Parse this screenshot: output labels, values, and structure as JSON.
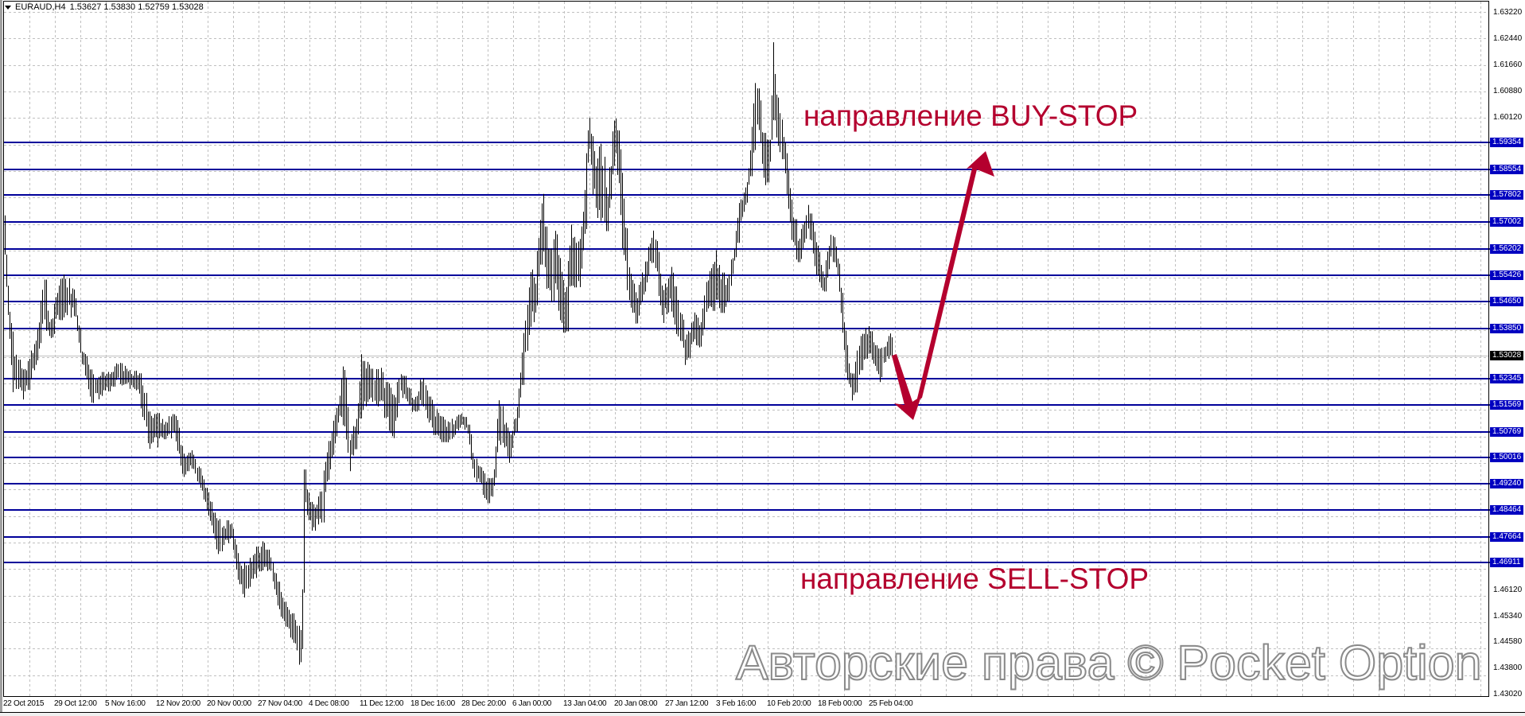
{
  "header": {
    "symbol": "EURAUD,H4",
    "ohlc": "1.53627 1.53830 1.52759 1.53028",
    "menu_icon": "triangle-down-icon"
  },
  "annotations": {
    "buy_text": "направление BUY-STOP",
    "sell_text": "направление SELL-STOP",
    "watermark": "Авторские права © Pocket Option",
    "color": "#b4002e"
  },
  "colors": {
    "bars": "#000000",
    "levels": "#00009a",
    "level_label_bg": "#0000c0",
    "current_price_bg": "#000000",
    "grid": "#c0c0c0",
    "current_price_line": "#c0c0c0"
  },
  "chart_data": {
    "type": "ohlc",
    "symbol": "EURAUD",
    "timeframe": "H4",
    "ylim": [
      1.4295,
      1.6353
    ],
    "grid": true,
    "last_close": 1.53028,
    "y_ticks": [
      "1.63220",
      "1.62440",
      "1.61660",
      "1.60880",
      "1.60120",
      "1.46120",
      "1.45340",
      "1.44580",
      "1.43800",
      "1.43020"
    ],
    "x_ticks": [
      {
        "label": "22 Oct 2015",
        "t": "2015-10-22T00:00"
      },
      {
        "label": "29 Oct 12:00",
        "t": "2015-10-29T12:00"
      },
      {
        "label": "5 Nov 16:00",
        "t": "2015-11-05T16:00"
      },
      {
        "label": "12 Nov 20:00",
        "t": "2015-11-12T20:00"
      },
      {
        "label": "20 Nov 00:00",
        "t": "2015-11-20T00:00"
      },
      {
        "label": "27 Nov 04:00",
        "t": "2015-11-27T04:00"
      },
      {
        "label": "4 Dec 08:00",
        "t": "2015-12-04T08:00"
      },
      {
        "label": "11 Dec 12:00",
        "t": "2015-12-11T12:00"
      },
      {
        "label": "18 Dec 16:00",
        "t": "2015-12-18T16:00"
      },
      {
        "label": "28 Dec 20:00",
        "t": "2015-12-28T20:00"
      },
      {
        "label": "6 Jan 00:00",
        "t": "2016-01-06T00:00"
      },
      {
        "label": "13 Jan 04:00",
        "t": "2016-01-13T04:00"
      },
      {
        "label": "20 Jan 08:00",
        "t": "2016-01-20T08:00"
      },
      {
        "label": "27 Jan 12:00",
        "t": "2016-01-27T12:00"
      },
      {
        "label": "3 Feb 16:00",
        "t": "2016-02-03T16:00"
      },
      {
        "label": "10 Feb 20:00",
        "t": "2016-02-10T20:00"
      },
      {
        "label": "18 Feb 00:00",
        "t": "2016-02-18T00:00"
      },
      {
        "label": "25 Feb 04:00",
        "t": "2016-02-25T04:00"
      }
    ],
    "levels": [
      "1.59354",
      "1.58554",
      "1.57802",
      "1.57002",
      "1.56202",
      "1.55426",
      "1.54650",
      "1.53850",
      "1.52345",
      "1.51569",
      "1.50769",
      "1.50016",
      "1.49240",
      "1.48464",
      "1.47664",
      "1.46911"
    ],
    "price_envelope": [
      [
        "2015-10-22T00:00",
        1.5768,
        1.5662
      ],
      [
        "2015-10-22T12:00",
        1.5561,
        1.5412
      ],
      [
        "2015-10-23T08:00",
        1.5334,
        1.5191
      ],
      [
        "2015-10-24T20:00",
        1.5266,
        1.5162
      ],
      [
        "2015-10-26T16:00",
        1.5353,
        1.5257
      ],
      [
        "2015-10-27T20:00",
        1.5556,
        1.5372
      ],
      [
        "2015-10-28T16:00",
        1.5403,
        1.5344
      ],
      [
        "2015-10-30T16:00",
        1.5575,
        1.5422
      ],
      [
        "2015-11-01T08:00",
        1.5488,
        1.5412
      ],
      [
        "2015-11-02T08:00",
        1.5325,
        1.5275
      ],
      [
        "2015-11-03T16:00",
        1.5266,
        1.5151
      ],
      [
        "2015-11-05T16:00",
        1.5257,
        1.5191
      ],
      [
        "2015-11-07T12:00",
        1.5287,
        1.5219
      ],
      [
        "2015-11-10T08:00",
        1.5257,
        1.5191
      ],
      [
        "2015-11-11T16:00",
        1.5162,
        1.4997
      ],
      [
        "2015-11-13T16:00",
        1.5122,
        1.5047
      ],
      [
        "2015-11-15T08:00",
        1.5141,
        1.5056
      ],
      [
        "2015-11-16T12:00",
        1.5007,
        1.4941
      ],
      [
        "2015-11-17T20:00",
        1.5026,
        1.4969
      ],
      [
        "2015-11-19T08:00",
        1.4943,
        1.4872
      ],
      [
        "2015-11-20T12:00",
        1.4863,
        1.4804
      ],
      [
        "2015-11-21T08:00",
        1.4825,
        1.471
      ],
      [
        "2015-11-23T08:00",
        1.4816,
        1.4757
      ],
      [
        "2015-11-24T08:00",
        1.4719,
        1.4632
      ],
      [
        "2015-11-25T04:00",
        1.471,
        1.4585
      ],
      [
        "2015-11-27T16:00",
        1.4757,
        1.466
      ],
      [
        "2015-11-28T20:00",
        1.4731,
        1.466
      ],
      [
        "2015-11-30T00:00",
        1.4623,
        1.4535
      ],
      [
        "2015-12-01T08:00",
        1.4554,
        1.4484
      ],
      [
        "2015-12-02T12:00",
        1.4545,
        1.442
      ],
      [
        "2015-12-03T04:00",
        1.4469,
        1.4344
      ],
      [
        "2015-12-03T12:00",
        1.4969,
        1.4849
      ],
      [
        "2015-12-04T20:00",
        1.4854,
        1.4776
      ],
      [
        "2015-12-06T04:00",
        1.495,
        1.4809
      ],
      [
        "2015-12-06T20:00",
        1.5037,
        1.4927
      ],
      [
        "2015-12-08T00:00",
        1.5155,
        1.5037
      ],
      [
        "2015-12-09T04:00",
        1.5304,
        1.5101
      ],
      [
        "2015-12-10T00:00",
        1.5085,
        1.496
      ],
      [
        "2015-12-10T20:00",
        1.5108,
        1.5037
      ],
      [
        "2015-12-11T16:00",
        1.5344,
        1.5132
      ],
      [
        "2015-12-13T04:00",
        1.5257,
        1.5162
      ],
      [
        "2015-12-14T08:00",
        1.5273,
        1.5148
      ],
      [
        "2015-12-16T04:00",
        1.5195,
        1.5037
      ],
      [
        "2015-12-17T04:00",
        1.5268,
        1.5172
      ],
      [
        "2015-12-19T04:00",
        1.5179,
        1.5132
      ],
      [
        "2015-12-20T20:00",
        1.525,
        1.5155
      ],
      [
        "2015-12-23T04:00",
        1.5162,
        1.5061
      ],
      [
        "2015-12-25T20:00",
        1.5108,
        1.5037
      ],
      [
        "2015-12-28T16:00",
        1.5139,
        1.5092
      ],
      [
        "2015-12-29T16:00",
        1.512,
        1.5078
      ],
      [
        "2015-12-30T16:00",
        1.5014,
        1.4943
      ],
      [
        "2016-01-01T20:00",
        1.4943,
        1.4865
      ],
      [
        "2016-01-02T20:00",
        1.4943,
        1.488
      ],
      [
        "2016-01-03T16:00",
        1.5179,
        1.5054
      ],
      [
        "2016-01-05T08:00",
        1.5073,
        1.4983
      ],
      [
        "2016-01-06T12:00",
        1.5148,
        1.5092
      ],
      [
        "2016-01-07T16:00",
        1.5415,
        1.5273
      ],
      [
        "2016-01-08T12:00",
        1.558,
        1.5415
      ],
      [
        "2016-01-09T00:00",
        1.5525,
        1.5367
      ],
      [
        "2016-01-10T04:00",
        1.5832,
        1.5634
      ],
      [
        "2016-01-10T16:00",
        1.5634,
        1.5455
      ],
      [
        "2016-01-12T04:00",
        1.5697,
        1.5445
      ],
      [
        "2016-01-13T08:00",
        1.5485,
        1.5344
      ],
      [
        "2016-01-14T08:00",
        1.5745,
        1.5492
      ],
      [
        "2016-01-15T12:00",
        1.5657,
        1.5509
      ],
      [
        "2016-01-16T16:00",
        1.6075,
        1.5862
      ],
      [
        "2016-01-17T12:00",
        1.591,
        1.5728
      ],
      [
        "2016-01-18T12:00",
        1.594,
        1.5681
      ],
      [
        "2016-01-19T08:00",
        1.5832,
        1.565
      ],
      [
        "2016-01-20T08:00",
        1.6056,
        1.5893
      ],
      [
        "2016-01-21T08:00",
        1.5886,
        1.5627
      ],
      [
        "2016-01-22T04:00",
        1.561,
        1.5455
      ],
      [
        "2016-01-23T08:00",
        1.5485,
        1.5375
      ],
      [
        "2016-01-25T08:00",
        1.565,
        1.5556
      ],
      [
        "2016-01-25T20:00",
        1.5704,
        1.5572
      ],
      [
        "2016-01-27T00:00",
        1.5509,
        1.5384
      ],
      [
        "2016-01-28T04:00",
        1.5587,
        1.5445
      ],
      [
        "2016-01-29T12:00",
        1.5455,
        1.532
      ],
      [
        "2016-01-30T08:00",
        1.5367,
        1.5257
      ],
      [
        "2016-01-31T12:00",
        1.5438,
        1.5337
      ],
      [
        "2016-02-01T12:00",
        1.5415,
        1.529
      ],
      [
        "2016-02-02T08:00",
        1.5556,
        1.5455
      ],
      [
        "2016-02-03T12:00",
        1.562,
        1.5426
      ],
      [
        "2016-02-04T20:00",
        1.5525,
        1.5422
      ],
      [
        "2016-02-06T00:00",
        1.562,
        1.5563
      ],
      [
        "2016-02-06T20:00",
        1.5768,
        1.5674
      ],
      [
        "2016-02-08T00:00",
        1.5822,
        1.5768
      ],
      [
        "2016-02-09T00:00",
        1.615,
        1.591
      ],
      [
        "2016-02-09T16:00",
        1.6058,
        1.5964
      ],
      [
        "2016-02-10T12:00",
        1.5957,
        1.5745
      ],
      [
        "2016-02-11T04:00",
        1.594,
        1.5862
      ],
      [
        "2016-02-11T16:00",
        1.6251,
        1.6004
      ],
      [
        "2016-02-12T08:00",
        1.6051,
        1.5917
      ],
      [
        "2016-02-13T04:00",
        1.5964,
        1.5855
      ],
      [
        "2016-02-14T00:00",
        1.5799,
        1.5657
      ],
      [
        "2016-02-15T04:00",
        1.565,
        1.5556
      ],
      [
        "2016-02-16T12:00",
        1.5756,
        1.5674
      ],
      [
        "2016-02-17T12:00",
        1.5657,
        1.5539
      ],
      [
        "2016-02-18T20:00",
        1.5563,
        1.5478
      ],
      [
        "2016-02-19T20:00",
        1.5686,
        1.5591
      ],
      [
        "2016-02-20T16:00",
        1.5596,
        1.5525
      ],
      [
        "2016-02-21T08:00",
        1.5469,
        1.5344
      ],
      [
        "2016-02-22T00:00",
        1.5285,
        1.521
      ],
      [
        "2016-02-22T20:00",
        1.5266,
        1.5162
      ],
      [
        "2016-02-24T00:00",
        1.5391,
        1.5266
      ],
      [
        "2016-02-25T04:00",
        1.5398,
        1.5304
      ],
      [
        "2016-02-26T00:00",
        1.5344,
        1.5243
      ],
      [
        "2016-02-26T16:00",
        1.5327,
        1.521
      ],
      [
        "2016-02-27T12:00",
        1.5356,
        1.5297
      ],
      [
        "2016-02-28T08:00",
        1.5384,
        1.5273
      ]
    ]
  }
}
